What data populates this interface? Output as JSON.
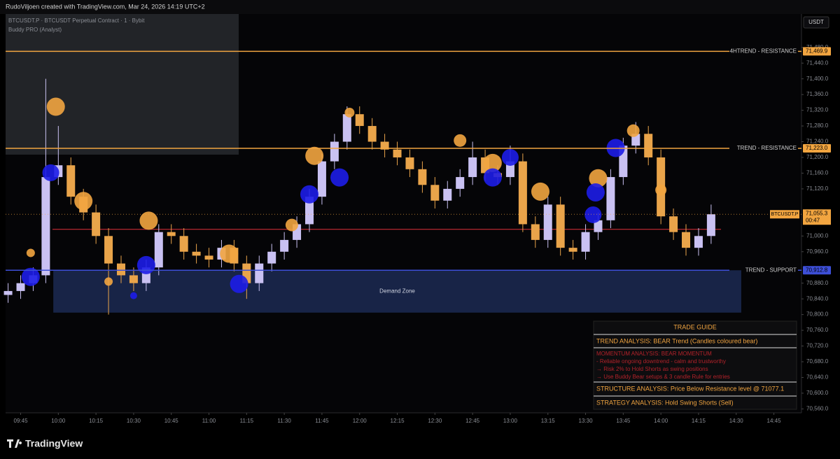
{
  "header": "RudoViljoen created with TradingView.com, Mar 24, 2026 14:19 UTC+2",
  "brand": "TradingView",
  "chart_data": {
    "type": "candlestick",
    "title": "BTCUSDT.P · BTCUSDT Perpetual Contract · 1 · Bybit",
    "subtitle": "Buddy PRO (Analyst)",
    "y_label": "USDT",
    "up_color": "#c9c1f2",
    "down_color": "#e9a44a",
    "grid": false,
    "xlim": [
      579,
      896
    ],
    "ylim": [
      70550,
      71565
    ],
    "xticks": [
      {
        "value": 585,
        "label": "09:45"
      },
      {
        "value": 600,
        "label": "10:00"
      },
      {
        "value": 615,
        "label": "10:15"
      },
      {
        "value": 630,
        "label": "10:30"
      },
      {
        "value": 645,
        "label": "10:45"
      },
      {
        "value": 660,
        "label": "11:00"
      },
      {
        "value": 675,
        "label": "11:15"
      },
      {
        "value": 690,
        "label": "11:30"
      },
      {
        "value": 705,
        "label": "11:45"
      },
      {
        "value": 720,
        "label": "12:00"
      },
      {
        "value": 735,
        "label": "12:15"
      },
      {
        "value": 750,
        "label": "12:30"
      },
      {
        "value": 765,
        "label": "12:45"
      },
      {
        "value": 780,
        "label": "13:00"
      },
      {
        "value": 795,
        "label": "13:15"
      },
      {
        "value": 810,
        "label": "13:30"
      },
      {
        "value": 825,
        "label": "13:45"
      },
      {
        "value": 840,
        "label": "14:00"
      },
      {
        "value": 855,
        "label": "14:15"
      },
      {
        "value": 870,
        "label": "14:30"
      },
      {
        "value": 885,
        "label": "14:45"
      }
    ],
    "yticks": [
      {
        "value": 70560,
        "label": "70,560.0"
      },
      {
        "value": 70600,
        "label": "70,600.0"
      },
      {
        "value": 70640,
        "label": "70,640.0"
      },
      {
        "value": 70680,
        "label": "70,680.0"
      },
      {
        "value": 70720,
        "label": "70,720.0"
      },
      {
        "value": 70760,
        "label": "70,760.0"
      },
      {
        "value": 70800,
        "label": "70,800.0"
      },
      {
        "value": 70840,
        "label": "70,840.0"
      },
      {
        "value": 70880,
        "label": "70,880.0"
      },
      {
        "value": 70960,
        "label": "70,960.0"
      },
      {
        "value": 71000,
        "label": "71,000.0"
      },
      {
        "value": 71120,
        "label": "71,120.0"
      },
      {
        "value": 71160,
        "label": "71,160.0"
      },
      {
        "value": 71200,
        "label": "71,200.0"
      },
      {
        "value": 71240,
        "label": "71,240.0"
      },
      {
        "value": 71280,
        "label": "71,280.0"
      },
      {
        "value": 71320,
        "label": "71,320.0"
      },
      {
        "value": 71360,
        "label": "71,360.0"
      },
      {
        "value": 71400,
        "label": "71,400.0"
      },
      {
        "value": 71440,
        "label": "71,440.0"
      },
      {
        "value": 71480,
        "label": "71,480.0"
      }
    ],
    "x": [
      580,
      585,
      590,
      595,
      600,
      605,
      610,
      615,
      620,
      625,
      630,
      635,
      640,
      645,
      650,
      655,
      660,
      665,
      670,
      675,
      680,
      685,
      690,
      695,
      700,
      705,
      710,
      715,
      720,
      725,
      730,
      735,
      740,
      745,
      750,
      755,
      760,
      765,
      770,
      775,
      780,
      785,
      790,
      795,
      800,
      805,
      810,
      815,
      820,
      825,
      830,
      835,
      840,
      845,
      850,
      855,
      860
    ],
    "open": [
      70850,
      70860,
      70880,
      70900,
      71150,
      71180,
      71100,
      71060,
      71000,
      70930,
      70900,
      70880,
      70920,
      71010,
      71000,
      70960,
      70950,
      70940,
      70970,
      70930,
      70880,
      70930,
      70960,
      70990,
      71030,
      71100,
      71190,
      71240,
      71310,
      71280,
      71240,
      71220,
      71200,
      71170,
      71130,
      71090,
      71120,
      71150,
      71200,
      71160,
      71150,
      71190,
      71030,
      70990,
      71080,
      70970,
      70960,
      71010,
      71040,
      71150,
      71230,
      71260,
      71200,
      71050,
      71010,
      70970,
      71000
    ],
    "high": [
      70880,
      70900,
      70920,
      71400,
      71280,
      71200,
      71120,
      71080,
      71020,
      70950,
      70920,
      70940,
      71030,
      71030,
      71020,
      70980,
      70970,
      70990,
      70990,
      70950,
      70950,
      70980,
      71010,
      71050,
      71120,
      71210,
      71260,
      71330,
      71330,
      71300,
      71260,
      71240,
      71220,
      71190,
      71150,
      71140,
      71170,
      71240,
      71220,
      71180,
      71230,
      71210,
      71050,
      71100,
      71100,
      70990,
      71030,
      71060,
      71170,
      71250,
      71290,
      71280,
      71220,
      71070,
      71030,
      71020,
      71080
    ],
    "low": [
      70830,
      70840,
      70860,
      70880,
      71130,
      71080,
      71040,
      70980,
      70800,
      70880,
      70860,
      70860,
      70900,
      70980,
      70940,
      70930,
      70920,
      70920,
      70910,
      70840,
      70860,
      70910,
      70940,
      70970,
      71010,
      71080,
      71170,
      71220,
      71260,
      71220,
      71200,
      71180,
      71150,
      71110,
      71070,
      71070,
      71100,
      71130,
      71140,
      71130,
      71130,
      71010,
      70970,
      70970,
      70950,
      70940,
      70940,
      70990,
      71020,
      71130,
      71210,
      71180,
      71030,
      70990,
      70950,
      70950,
      70980
    ],
    "close": [
      70860,
      70880,
      70900,
      71150,
      71180,
      71100,
      71060,
      71000,
      70930,
      70900,
      70880,
      70920,
      71010,
      71000,
      70960,
      70950,
      70940,
      70970,
      70930,
      70880,
      70930,
      70960,
      70990,
      71030,
      71100,
      71190,
      71240,
      71310,
      71280,
      71240,
      71220,
      71200,
      71170,
      71130,
      71090,
      71120,
      71150,
      71200,
      71160,
      71150,
      71190,
      71030,
      70990,
      71080,
      70970,
      70960,
      71010,
      71040,
      71150,
      71230,
      71260,
      71200,
      71050,
      71010,
      70970,
      71000,
      71055.3
    ],
    "markers": [
      {
        "color": "#f2a540",
        "x": [
          599,
          610,
          636,
          668,
          702,
          716,
          760,
          773,
          792,
          815,
          829,
          840,
          620,
          589,
          693
        ],
        "y": [
          71329,
          71089,
          71039,
          70955,
          71204,
          71314,
          71243,
          71186,
          71113,
          71147,
          71268,
          71117,
          70884,
          70957,
          71028
        ],
        "sizes": [
          13,
          13,
          13,
          13,
          13,
          7,
          9,
          13,
          13,
          13,
          9,
          8,
          6,
          6,
          9
        ]
      },
      {
        "color": "#1d1de8",
        "x": [
          597,
          589,
          635,
          672,
          700,
          712,
          773,
          780,
          814,
          813,
          822,
          630
        ],
        "y": [
          71161,
          70896,
          70926,
          70878,
          71106,
          71149,
          71149,
          71200,
          71111,
          71054,
          71224,
          70848
        ],
        "sizes": [
          12,
          13,
          13,
          13,
          13,
          13,
          13,
          12,
          13,
          12,
          13,
          5
        ]
      }
    ],
    "levels": [
      {
        "name": "4HTREND - RESISTANCE",
        "value": 71469.9,
        "label": "71,469.9",
        "color": "#f2a540"
      },
      {
        "name": "TREND - RESISTANCE",
        "value": 71223.0,
        "label": "71,223.0",
        "color": "#f2a540"
      },
      {
        "name": "TREND - SUPPORT",
        "value": 70912.8,
        "label": "70,912.8",
        "color": "#3d4fd8"
      }
    ],
    "midline": {
      "value": 71017,
      "color": "#e0303a"
    },
    "last_price": {
      "name": "BTCUSDT.P",
      "value": 71055.3,
      "label": "71,055.3",
      "countdown": "00:47",
      "color": "#f2a540"
    },
    "demand_zone": {
      "label": "Demand Zone",
      "range": [
        70805,
        70912.8
      ],
      "xrange": [
        598,
        872
      ]
    }
  },
  "trade_guide": {
    "title": "TRADE GUIDE",
    "trend": "TREND ANALYSIS: BEAR Trend (Candles coloured bear)",
    "momentum": [
      "MOMENTUM ANALYSIS: BEAR MOMENTUM",
      "- Reliable ongoing downtrend - calm and trustworthy",
      "→ Risk 2% to Hold Shorts as swing positions",
      "→ Use Buddy Bear setups & 3 candle Rule for entries"
    ],
    "structure": "STRUCTURE ANALYSIS: Price Below Resistance level @ 71077.1",
    "strategy": "STRATEGY ANALYSIS: Hold Swing Shorts (Sell)"
  }
}
